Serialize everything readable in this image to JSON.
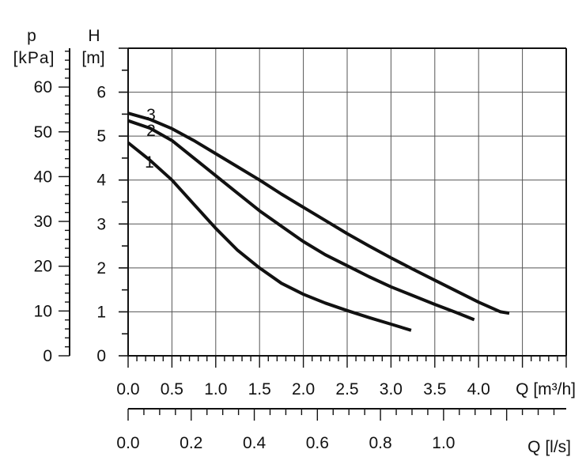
{
  "chart_data": {
    "type": "line",
    "grid": true,
    "primary_axis": {
      "title": "H",
      "unit": "[m]",
      "range": [
        0,
        7
      ],
      "ticks": [
        "0",
        "1",
        "2",
        "3",
        "4",
        "5",
        "6"
      ]
    },
    "secondary_y_axis": {
      "title": "p",
      "unit": "[kPa]",
      "range": [
        0,
        68.67
      ],
      "ticks": [
        "0",
        "10",
        "20",
        "30",
        "40",
        "50",
        "60"
      ]
    },
    "x_axis_flow_m3h": {
      "label": "Q [m³/h]",
      "range": [
        0,
        5
      ],
      "ticks": [
        "0.0",
        "0.5",
        "1.0",
        "1.5",
        "2.0",
        "2.5",
        "3.0",
        "3.5",
        "4.0"
      ]
    },
    "x_axis_flow_ls": {
      "label": "Q [l/s]",
      "range": [
        0,
        1.3889
      ],
      "ticks": [
        "0.0",
        "0.2",
        "0.4",
        "0.6",
        "0.8",
        "1.0"
      ]
    },
    "series": [
      {
        "name": "1",
        "x": [
          0,
          0.25,
          0.5,
          0.75,
          1.0,
          1.25,
          1.5,
          1.75,
          2.0,
          2.25,
          2.5,
          2.75,
          3.0,
          3.23
        ],
        "y": [
          4.85,
          4.45,
          4.0,
          3.45,
          2.9,
          2.4,
          2.0,
          1.65,
          1.4,
          1.2,
          1.03,
          0.87,
          0.72,
          0.58
        ]
      },
      {
        "name": "2",
        "x": [
          0,
          0.25,
          0.5,
          0.75,
          1.0,
          1.25,
          1.5,
          1.75,
          2.0,
          2.25,
          2.5,
          2.75,
          3.0,
          3.25,
          3.5,
          3.75,
          3.95
        ],
        "y": [
          5.35,
          5.18,
          4.9,
          4.5,
          4.1,
          3.7,
          3.3,
          2.95,
          2.6,
          2.3,
          2.05,
          1.8,
          1.57,
          1.37,
          1.17,
          0.98,
          0.82
        ]
      },
      {
        "name": "3",
        "x": [
          0,
          0.25,
          0.5,
          0.75,
          1.0,
          1.25,
          1.5,
          1.75,
          2.0,
          2.25,
          2.5,
          2.75,
          3.0,
          3.25,
          3.5,
          3.75,
          4.0,
          4.25,
          4.35
        ],
        "y": [
          5.52,
          5.38,
          5.17,
          4.9,
          4.6,
          4.3,
          4.0,
          3.68,
          3.38,
          3.08,
          2.78,
          2.5,
          2.23,
          1.97,
          1.72,
          1.47,
          1.22,
          1.0,
          0.97
        ]
      }
    ]
  }
}
